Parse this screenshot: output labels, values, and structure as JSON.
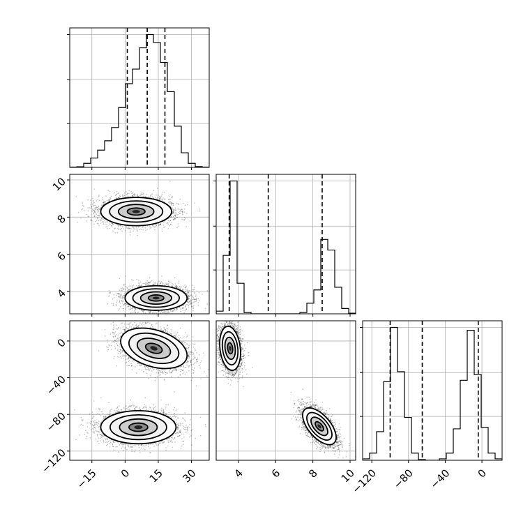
{
  "chart_data": {
    "type": "corner",
    "title": "",
    "parameters": [
      {
        "range": [
          -25,
          38
        ],
        "ticks": [
          -15,
          0,
          15,
          30
        ],
        "tick_labels": [
          "−15",
          "0",
          "15",
          "30"
        ]
      },
      {
        "range": [
          2.8,
          10.3
        ],
        "ticks": [
          4,
          6,
          8,
          10
        ],
        "tick_labels": [
          "4",
          "6",
          "8",
          "10"
        ]
      },
      {
        "range": [
          -130,
          22
        ],
        "ticks": [
          -120,
          -80,
          -40,
          0
        ],
        "tick_labels": [
          "−120",
          "−80",
          "−40",
          "0"
        ]
      }
    ],
    "grid": true,
    "diagonal": [
      {
        "param": 0,
        "bin_edges": [
          -25,
          -21.85,
          -18.7,
          -15.55,
          -12.4,
          -9.25,
          -6.1,
          -2.95,
          0.2,
          3.35,
          6.5,
          9.65,
          12.8,
          15.95,
          19.1,
          22.25,
          25.4,
          28.55,
          31.7,
          34.85,
          38
        ],
        "counts": [
          0.002,
          0.005,
          0.03,
          0.07,
          0.13,
          0.2,
          0.3,
          0.45,
          0.63,
          0.74,
          0.9,
          1.0,
          0.94,
          0.79,
          0.57,
          0.31,
          0.11,
          0.03,
          0.006,
          0.002
        ],
        "quantiles": [
          1,
          10,
          18
        ]
      },
      {
        "param": 1,
        "bin_edges": [
          2.8,
          3.175,
          3.55,
          3.925,
          4.3,
          4.675,
          5.05,
          5.425,
          5.8,
          6.175,
          6.55,
          6.925,
          7.3,
          7.675,
          8.05,
          8.425,
          8.8,
          9.175,
          9.55,
          9.925,
          10.3
        ],
        "counts": [
          0.02,
          0.44,
          1.0,
          0.23,
          0.01,
          0,
          0,
          0,
          0,
          0,
          0,
          0,
          0.01,
          0.08,
          0.18,
          0.56,
          0.48,
          0.2,
          0.04,
          0.005
        ],
        "quantiles": [
          3.5,
          5.6,
          8.5
        ]
      },
      {
        "param": 2,
        "bin_edges": [
          -130,
          -122.4,
          -114.8,
          -107.2,
          -99.6,
          -92,
          -84.4,
          -76.8,
          -69.2,
          -61.6,
          -54,
          -46.4,
          -38.8,
          -31.2,
          -23.6,
          -16,
          -8.4,
          -0.8,
          6.8,
          14.4,
          22
        ],
        "counts": [
          0.01,
          0.05,
          0.2,
          0.55,
          0.93,
          0.62,
          0.3,
          0.05,
          0.005,
          0,
          0,
          0.01,
          0.05,
          0.22,
          0.56,
          0.91,
          0.6,
          0.23,
          0.05,
          0.01
        ],
        "quantiles": [
          -100,
          -65,
          -4
        ]
      }
    ],
    "pairs": [
      {
        "x_param": 0,
        "y_param": 1,
        "clusters": [
          {
            "center": [
              5,
              8.3
            ],
            "sd": [
              8,
              0.38
            ],
            "rho": 0,
            "n": 3800
          },
          {
            "center": [
              14,
              3.65
            ],
            "sd": [
              7,
              0.33
            ],
            "rho": 0,
            "n": 3800
          }
        ]
      },
      {
        "x_param": 0,
        "y_param": 2,
        "clusters": [
          {
            "center": [
              13,
              -8
            ],
            "sd": [
              7.5,
              11
            ],
            "rho": -0.35,
            "n": 3800
          },
          {
            "center": [
              6,
              -94
            ],
            "sd": [
              8.5,
              9
            ],
            "rho": 0,
            "n": 3800
          }
        ]
      },
      {
        "x_param": 1,
        "y_param": 2,
        "clusters": [
          {
            "center": [
              3.55,
              -8
            ],
            "sd": [
              0.28,
              12
            ],
            "rho": -0.2,
            "n": 3800
          },
          {
            "center": [
              8.35,
              -93
            ],
            "sd": [
              0.45,
              10
            ],
            "rho": -0.6,
            "n": 3800
          }
        ]
      }
    ]
  }
}
